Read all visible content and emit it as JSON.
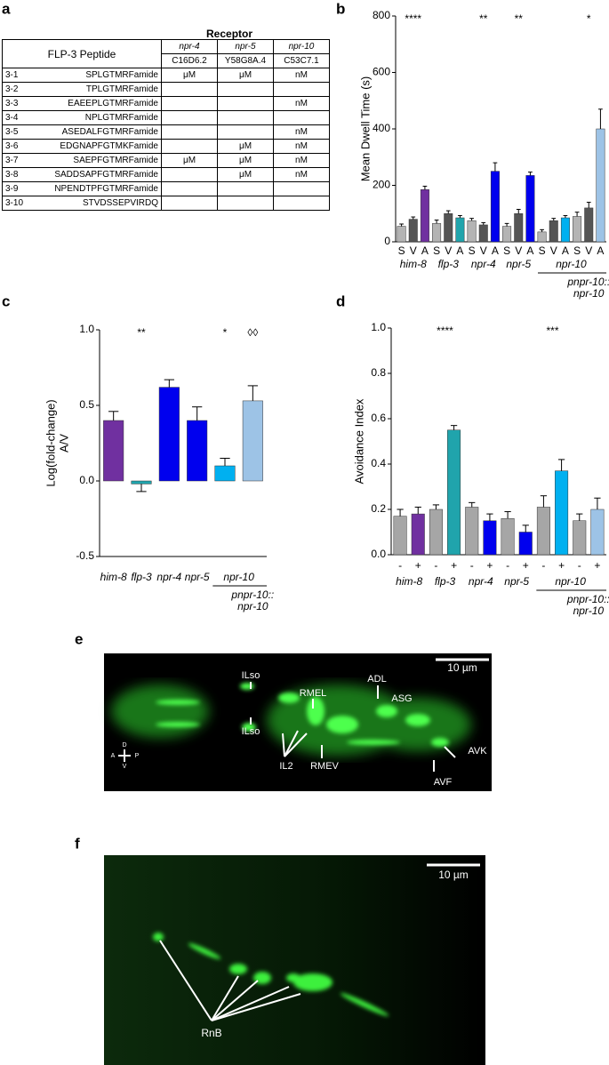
{
  "panel_labels": [
    "a",
    "b",
    "c",
    "d",
    "e",
    "f"
  ],
  "table": {
    "receptor": "Receptor",
    "peptide": "FLP-3 Peptide",
    "genes": [
      "npr-4",
      "npr-5",
      "npr-10"
    ],
    "cosmids": [
      "C16D6.2",
      "Y58G8A.4",
      "C53C7.1"
    ],
    "rows": [
      [
        "3-1",
        "SPLGTMRFamide",
        "μM",
        "μM",
        "nM"
      ],
      [
        "3-2",
        "TPLGTMRFamide",
        null,
        null,
        null
      ],
      [
        "3-3",
        "EAEEPLGTMRFamide",
        null,
        null,
        "nM"
      ],
      [
        "3-4",
        "NPLGTMRFamide",
        null,
        null,
        null
      ],
      [
        "3-5",
        "ASEDALFGTMRFamide",
        null,
        null,
        "nM"
      ],
      [
        "3-6",
        "EDGNAPFGTMKFamide",
        null,
        "μM",
        "nM"
      ],
      [
        "3-7",
        "SAEPFGTMRFamide",
        "μM",
        "μM",
        "nM"
      ],
      [
        "3-8",
        "SADDSAPFGTMRFamide",
        null,
        "μM",
        "nM"
      ],
      [
        "3-9",
        "NPENDTPFGTMRFamide",
        null,
        null,
        null
      ],
      [
        "3-10",
        "STVDSSEPVIRDQ",
        null,
        null,
        null
      ]
    ]
  },
  "chart_data": [
    {
      "type": "bar",
      "ylabel": "Mean Dwell Time (s)",
      "ylim": [
        0,
        800
      ],
      "yticks": [
        0,
        200,
        400,
        600,
        800
      ],
      "groups": [
        {
          "name": "him-8",
          "categories": [
            "S",
            "V",
            "A"
          ],
          "values": [
            55,
            80,
            185
          ],
          "errors": [
            8,
            8,
            12
          ],
          "colors": [
            "#b4b4b4",
            "#555555",
            "#7030a0"
          ],
          "annotation": "****"
        },
        {
          "name": "flp-3",
          "categories": [
            "S",
            "V",
            "A"
          ],
          "values": [
            65,
            100,
            85
          ],
          "errors": [
            12,
            10,
            8
          ],
          "colors": [
            "#b4b4b4",
            "#555555",
            "#20a4ac"
          ]
        },
        {
          "name": "npr-4",
          "categories": [
            "S",
            "V",
            "A"
          ],
          "values": [
            75,
            60,
            250
          ],
          "errors": [
            8,
            8,
            30
          ],
          "colors": [
            "#b4b4b4",
            "#555555",
            "#0000ee"
          ],
          "annotation": "**"
        },
        {
          "name": "npr-5",
          "categories": [
            "S",
            "V",
            "A"
          ],
          "values": [
            55,
            100,
            235
          ],
          "errors": [
            10,
            15,
            12
          ],
          "colors": [
            "#b4b4b4",
            "#555555",
            "#0000ee"
          ],
          "annotation": "**"
        },
        {
          "name": "npr-10",
          "categories": [
            "S",
            "V",
            "A"
          ],
          "values": [
            35,
            75,
            85
          ],
          "errors": [
            8,
            8,
            8
          ],
          "colors": [
            "#b4b4b4",
            "#555555",
            "#00b0f0"
          ]
        },
        {
          "name": [
            "pnpr-10::",
            "npr-10"
          ],
          "categories": [
            "S",
            "V",
            "A"
          ],
          "values": [
            90,
            120,
            400
          ],
          "errors": [
            15,
            20,
            70
          ],
          "colors": [
            "#b4b4b4",
            "#555555",
            "#9dc3e6"
          ],
          "annotation": "*"
        }
      ]
    },
    {
      "type": "bar",
      "ylabel": [
        "Log(fold-change)",
        "A/V"
      ],
      "ylim": [
        -0.5,
        1.0
      ],
      "yticks": [
        -0.5,
        {
          "value": 0,
          "label": "0.0"
        },
        0.5,
        {
          "value": 1.0,
          "label": "1.0"
        }
      ],
      "groups": [
        {
          "name": "him-8",
          "values": [
            0.4
          ],
          "errors": [
            0.06
          ],
          "colors": [
            "#7030a0"
          ]
        },
        {
          "name": "flp-3",
          "values": [
            -0.02
          ],
          "errors": [
            0.05
          ],
          "colors": [
            "#20a4ac"
          ],
          "annotation": "**"
        },
        {
          "name": "npr-4",
          "values": [
            0.62
          ],
          "errors": [
            0.05
          ],
          "colors": [
            "#0000ee"
          ]
        },
        {
          "name": "npr-5",
          "values": [
            0.4
          ],
          "errors": [
            0.09
          ],
          "colors": [
            "#0000ee"
          ]
        },
        {
          "name": "npr-10",
          "values": [
            0.1
          ],
          "errors": [
            0.05
          ],
          "colors": [
            "#00b0f0"
          ],
          "annotation": "*"
        },
        {
          "name": [
            "pnpr-10::",
            "npr-10"
          ],
          "values": [
            0.53
          ],
          "errors": [
            0.1
          ],
          "colors": [
            "#9dc3e6"
          ],
          "annotation": "◊◊"
        }
      ]
    },
    {
      "type": "bar",
      "ylabel": "Avoidance Index",
      "ylim": [
        0,
        1.0
      ],
      "yticks": [
        {
          "value": 0,
          "label": "0.0"
        },
        0.2,
        0.4,
        0.6,
        0.8,
        {
          "value": 1.0,
          "label": "1.0"
        }
      ],
      "groups": [
        {
          "name": "him-8",
          "categories": [
            "-",
            "+"
          ],
          "values": [
            0.17,
            0.18
          ],
          "errors": [
            0.03,
            0.03
          ],
          "colors": [
            "#a6a6a6",
            "#7030a0"
          ]
        },
        {
          "name": "flp-3",
          "categories": [
            "-",
            "+"
          ],
          "values": [
            0.2,
            0.55
          ],
          "errors": [
            0.02,
            0.02
          ],
          "colors": [
            "#a6a6a6",
            "#20a4ac"
          ],
          "annotation": "****"
        },
        {
          "name": "npr-4",
          "categories": [
            "-",
            "+"
          ],
          "values": [
            0.21,
            0.15
          ],
          "errors": [
            0.02,
            0.03
          ],
          "colors": [
            "#a6a6a6",
            "#0000ee"
          ]
        },
        {
          "name": "npr-5",
          "categories": [
            "-",
            "+"
          ],
          "values": [
            0.16,
            0.1
          ],
          "errors": [
            0.03,
            0.03
          ],
          "colors": [
            "#a6a6a6",
            "#0000ee"
          ]
        },
        {
          "name": "npr-10",
          "categories": [
            "-",
            "+"
          ],
          "values": [
            0.21,
            0.37
          ],
          "errors": [
            0.05,
            0.05
          ],
          "colors": [
            "#a6a6a6",
            "#00b0f0"
          ],
          "annotation": "***"
        },
        {
          "name": [
            "pnpr-10::",
            "npr-10"
          ],
          "categories": [
            "-",
            "+"
          ],
          "values": [
            0.15,
            0.2
          ],
          "errors": [
            0.03,
            0.05
          ],
          "colors": [
            "#a6a6a6",
            "#9dc3e6"
          ]
        }
      ]
    }
  ],
  "image_e": {
    "labels": [
      "ILso",
      "ILso",
      "RMEL",
      "IL2",
      "RMEV",
      "ADL",
      "ASG",
      "AVK",
      "AVF"
    ],
    "scale": "10 µm",
    "compass": [
      "D",
      "A",
      "P",
      "V"
    ]
  },
  "image_f": {
    "labels": [
      "RnB"
    ],
    "scale": "10 µm"
  }
}
